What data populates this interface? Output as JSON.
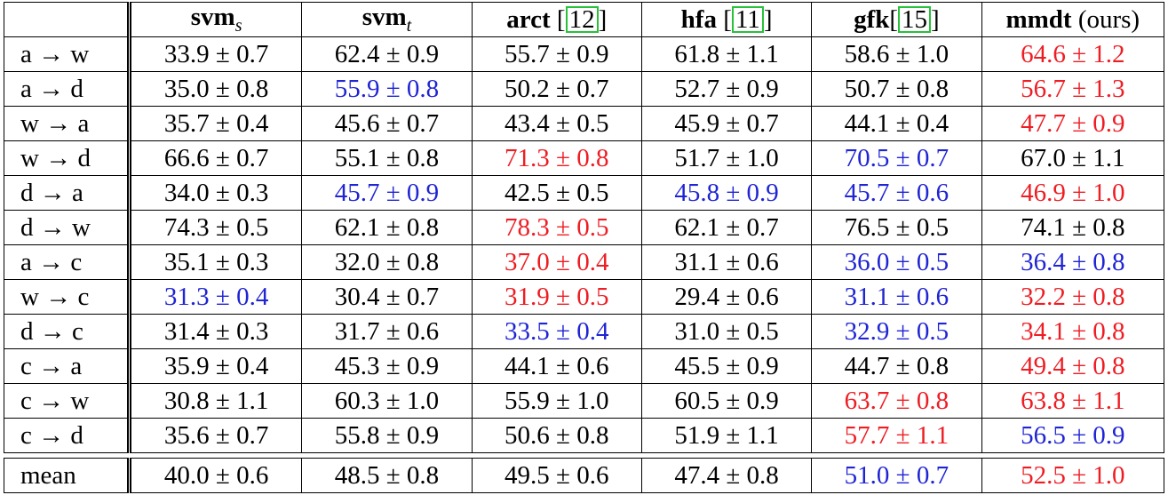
{
  "colors": {
    "best": "#ee1d23",
    "second": "#1f24d4",
    "default": "#000000",
    "citation_box": "#27c23a"
  },
  "header": {
    "corner": "",
    "columns": [
      {
        "name": "svm",
        "sub": "s",
        "suffix": ""
      },
      {
        "name": "svm",
        "sub": "t",
        "suffix": ""
      },
      {
        "name": "arct",
        "sub": "",
        "pre": " [",
        "cite": "12",
        "post": "]"
      },
      {
        "name": "hfa",
        "sub": "",
        "pre": " [",
        "cite": "11",
        "post": "]"
      },
      {
        "name": "gfk",
        "sub": "",
        "pre": "[",
        "cite": "15",
        "post": "]"
      },
      {
        "name": "mmdt",
        "sub": "",
        "suffix": " (ours)"
      }
    ]
  },
  "rows": [
    {
      "label": "a → w",
      "cells": [
        {
          "v": "33.9 ± 0.7",
          "c": "black"
        },
        {
          "v": "62.4 ± 0.9",
          "c": "black"
        },
        {
          "v": "55.7 ± 0.9",
          "c": "black"
        },
        {
          "v": "61.8 ± 1.1",
          "c": "black"
        },
        {
          "v": "58.6 ± 1.0",
          "c": "black"
        },
        {
          "v": "64.6 ± 1.2",
          "c": "red"
        }
      ]
    },
    {
      "label": "a → d",
      "cells": [
        {
          "v": "35.0 ± 0.8",
          "c": "black"
        },
        {
          "v": "55.9 ± 0.8",
          "c": "blue"
        },
        {
          "v": "50.2 ± 0.7",
          "c": "black"
        },
        {
          "v": "52.7 ± 0.9",
          "c": "black"
        },
        {
          "v": "50.7 ± 0.8",
          "c": "black"
        },
        {
          "v": "56.7 ± 1.3",
          "c": "red"
        }
      ]
    },
    {
      "label": "w → a",
      "cells": [
        {
          "v": "35.7 ± 0.4",
          "c": "black"
        },
        {
          "v": "45.6 ± 0.7",
          "c": "black"
        },
        {
          "v": "43.4 ± 0.5",
          "c": "black"
        },
        {
          "v": "45.9 ± 0.7",
          "c": "black"
        },
        {
          "v": "44.1 ± 0.4",
          "c": "black"
        },
        {
          "v": "47.7 ± 0.9",
          "c": "red"
        }
      ]
    },
    {
      "label": "w → d",
      "cells": [
        {
          "v": "66.6 ± 0.7",
          "c": "black"
        },
        {
          "v": "55.1 ± 0.8",
          "c": "black"
        },
        {
          "v": "71.3 ± 0.8",
          "c": "red"
        },
        {
          "v": "51.7 ± 1.0",
          "c": "black"
        },
        {
          "v": "70.5 ± 0.7",
          "c": "blue"
        },
        {
          "v": "67.0 ± 1.1",
          "c": "black"
        }
      ]
    },
    {
      "label": "d → a",
      "cells": [
        {
          "v": "34.0 ± 0.3",
          "c": "black"
        },
        {
          "v": "45.7 ± 0.9",
          "c": "blue"
        },
        {
          "v": "42.5 ± 0.5",
          "c": "black"
        },
        {
          "v": "45.8 ± 0.9",
          "c": "blue"
        },
        {
          "v": "45.7 ± 0.6",
          "c": "blue"
        },
        {
          "v": "46.9 ± 1.0",
          "c": "red"
        }
      ]
    },
    {
      "label": "d → w",
      "cells": [
        {
          "v": "74.3 ± 0.5",
          "c": "black"
        },
        {
          "v": "62.1 ± 0.8",
          "c": "black"
        },
        {
          "v": "78.3 ± 0.5",
          "c": "red"
        },
        {
          "v": "62.1 ± 0.7",
          "c": "black"
        },
        {
          "v": "76.5 ± 0.5",
          "c": "black"
        },
        {
          "v": "74.1 ± 0.8",
          "c": "black"
        }
      ]
    },
    {
      "label": "a → c",
      "cells": [
        {
          "v": "35.1 ± 0.3",
          "c": "black"
        },
        {
          "v": "32.0 ± 0.8",
          "c": "black"
        },
        {
          "v": "37.0 ± 0.4",
          "c": "red"
        },
        {
          "v": "31.1 ± 0.6",
          "c": "black"
        },
        {
          "v": "36.0 ± 0.5",
          "c": "blue"
        },
        {
          "v": "36.4 ± 0.8",
          "c": "blue"
        }
      ]
    },
    {
      "label": "w → c",
      "cells": [
        {
          "v": "31.3 ± 0.4",
          "c": "blue"
        },
        {
          "v": "30.4 ± 0.7",
          "c": "black"
        },
        {
          "v": "31.9 ± 0.5",
          "c": "red"
        },
        {
          "v": "29.4 ± 0.6",
          "c": "black"
        },
        {
          "v": "31.1 ± 0.6",
          "c": "blue"
        },
        {
          "v": "32.2 ± 0.8",
          "c": "red"
        }
      ]
    },
    {
      "label": "d → c",
      "cells": [
        {
          "v": "31.4 ± 0.3",
          "c": "black"
        },
        {
          "v": "31.7 ± 0.6",
          "c": "black"
        },
        {
          "v": "33.5 ± 0.4",
          "c": "blue"
        },
        {
          "v": "31.0 ± 0.5",
          "c": "black"
        },
        {
          "v": "32.9 ± 0.5",
          "c": "blue"
        },
        {
          "v": "34.1 ± 0.8",
          "c": "red"
        }
      ]
    },
    {
      "label": "c → a",
      "cells": [
        {
          "v": "35.9 ± 0.4",
          "c": "black"
        },
        {
          "v": "45.3 ± 0.9",
          "c": "black"
        },
        {
          "v": "44.1 ± 0.6",
          "c": "black"
        },
        {
          "v": "45.5 ± 0.9",
          "c": "black"
        },
        {
          "v": "44.7 ± 0.8",
          "c": "black"
        },
        {
          "v": "49.4 ± 0.8",
          "c": "red"
        }
      ]
    },
    {
      "label": "c → w",
      "cells": [
        {
          "v": "30.8 ± 1.1",
          "c": "black"
        },
        {
          "v": "60.3 ± 1.0",
          "c": "black"
        },
        {
          "v": "55.9 ± 1.0",
          "c": "black"
        },
        {
          "v": "60.5 ± 0.9",
          "c": "black"
        },
        {
          "v": "63.7 ± 0.8",
          "c": "red"
        },
        {
          "v": "63.8 ± 1.1",
          "c": "red"
        }
      ]
    },
    {
      "label": "c → d",
      "cells": [
        {
          "v": "35.6 ± 0.7",
          "c": "black"
        },
        {
          "v": "55.8 ± 0.9",
          "c": "black"
        },
        {
          "v": "50.6 ± 0.8",
          "c": "black"
        },
        {
          "v": "51.9 ± 1.1",
          "c": "black"
        },
        {
          "v": "57.7 ± 1.1",
          "c": "red"
        },
        {
          "v": "56.5 ± 0.9",
          "c": "blue"
        }
      ]
    }
  ],
  "mean": {
    "label": "mean",
    "cells": [
      {
        "v": "40.0 ± 0.6",
        "c": "black"
      },
      {
        "v": "48.5 ± 0.8",
        "c": "black"
      },
      {
        "v": "49.5 ± 0.6",
        "c": "black"
      },
      {
        "v": "47.4 ± 0.8",
        "c": "black"
      },
      {
        "v": "51.0 ± 0.7",
        "c": "blue"
      },
      {
        "v": "52.5 ± 1.0",
        "c": "red"
      }
    ]
  }
}
